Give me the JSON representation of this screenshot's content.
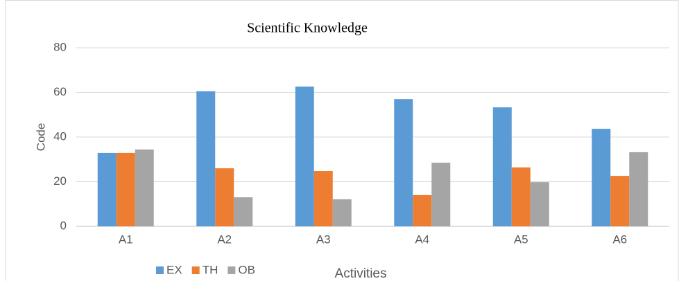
{
  "chart_data": {
    "type": "bar",
    "title": "Scientific Knowledge",
    "x_label": "Activities",
    "y_label": "Code",
    "categories": [
      "A1",
      "A2",
      "A3",
      "A4",
      "A5",
      "A6"
    ],
    "series": [
      {
        "name": "EX",
        "color": "#5b9bd5",
        "values": [
          32.9,
          60.5,
          62.6,
          57,
          53.3,
          43.7
        ]
      },
      {
        "name": "TH",
        "color": "#ed7d31",
        "values": [
          32.9,
          26,
          24.8,
          14,
          26.4,
          22.6
        ]
      },
      {
        "name": "OB",
        "color": "#a5a5a5",
        "values": [
          34.4,
          13,
          12.1,
          28.5,
          19.8,
          33.2
        ]
      }
    ],
    "ylim": [
      0,
      80
    ],
    "yticks": [
      0,
      20,
      40,
      60,
      80
    ],
    "grid": true,
    "legend": "bottom"
  }
}
